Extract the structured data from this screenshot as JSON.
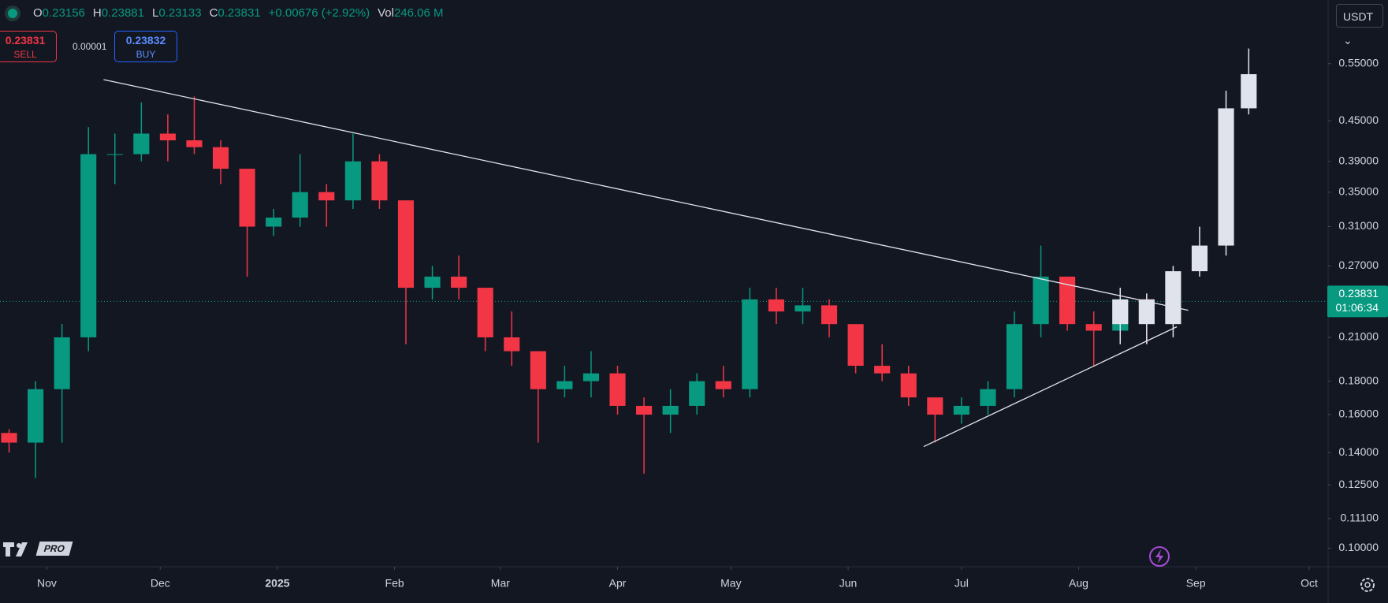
{
  "header": {
    "items": [
      {
        "label": "O",
        "value": "0.23156"
      },
      {
        "label": "H",
        "value": "0.23881"
      },
      {
        "label": "L",
        "value": "0.23133"
      },
      {
        "label": "C",
        "value": "0.23831"
      }
    ],
    "change": "+0.00676 (+2.92%)",
    "volume_label": "Vol",
    "volume": "246.06 M"
  },
  "trade": {
    "sell_price": "0.23831",
    "sell_label": "SELL",
    "spread": "0.00001",
    "buy_price": "0.23832",
    "buy_label": "BUY"
  },
  "currency": "USDT",
  "badge": "PRO",
  "chart_data": {
    "type": "candlestick",
    "log_scale": true,
    "grid": false,
    "up_color": "#089981",
    "down_color": "#f23645",
    "projection_color": "#e0e3eb",
    "trendline_color": "#e0e3eb",
    "xlim": [
      -12.4,
      339
    ],
    "xticks": [
      {
        "value": 0,
        "label": "Nov"
      },
      {
        "value": 30,
        "label": "Dec"
      },
      {
        "value": 61,
        "label": "2025"
      },
      {
        "value": 92,
        "label": "Feb"
      },
      {
        "value": 120,
        "label": "Mar"
      },
      {
        "value": 151,
        "label": "Apr"
      },
      {
        "value": 181,
        "label": "May"
      },
      {
        "value": 212,
        "label": "Jun"
      },
      {
        "value": 242,
        "label": "Jul"
      },
      {
        "value": 273,
        "label": "Aug"
      },
      {
        "value": 304,
        "label": "Sep"
      },
      {
        "value": 334,
        "label": "Oct"
      }
    ],
    "ylim": [
      0.0937,
      0.688
    ],
    "yticks": [
      {
        "value": 0.55,
        "label": "0.55000"
      },
      {
        "value": 0.45,
        "label": "0.45000"
      },
      {
        "value": 0.39,
        "label": "0.39000"
      },
      {
        "value": 0.35,
        "label": "0.35000"
      },
      {
        "value": 0.31,
        "label": "0.31000"
      },
      {
        "value": 0.27,
        "label": "0.27000"
      },
      {
        "value": 0.21,
        "label": "0.21000"
      },
      {
        "value": 0.18,
        "label": "0.18000"
      },
      {
        "value": 0.16,
        "label": "0.16000"
      },
      {
        "value": 0.14,
        "label": "0.14000"
      },
      {
        "value": 0.125,
        "label": "0.12500"
      },
      {
        "value": 0.111,
        "label": "0.11100"
      },
      {
        "value": 0.1,
        "label": "0.10000"
      }
    ],
    "candles": {
      "x": [
        -10,
        -3,
        4,
        11,
        18,
        25,
        32,
        39,
        46,
        53,
        60,
        67,
        74,
        81,
        88,
        95,
        102,
        109,
        116,
        123,
        130,
        137,
        144,
        151,
        158,
        165,
        172,
        179,
        186,
        193,
        200,
        207,
        214,
        221,
        228,
        235,
        242,
        249,
        256,
        263,
        270,
        277,
        284,
        291
      ],
      "open": [
        0.15,
        0.145,
        0.175,
        0.21,
        0.4,
        0.4,
        0.43,
        0.42,
        0.41,
        0.38,
        0.31,
        0.32,
        0.35,
        0.34,
        0.39,
        0.34,
        0.25,
        0.26,
        0.25,
        0.21,
        0.2,
        0.175,
        0.18,
        0.185,
        0.165,
        0.16,
        0.165,
        0.18,
        0.175,
        0.24,
        0.23,
        0.235,
        0.22,
        0.19,
        0.185,
        0.17,
        0.16,
        0.165,
        0.175,
        0.22,
        0.26,
        0.22,
        0.215,
        0.24
      ],
      "high": [
        0.152,
        0.18,
        0.22,
        0.44,
        0.43,
        0.48,
        0.46,
        0.49,
        0.42,
        0.38,
        0.33,
        0.4,
        0.36,
        0.43,
        0.4,
        0.34,
        0.27,
        0.28,
        0.25,
        0.23,
        0.2,
        0.19,
        0.2,
        0.19,
        0.17,
        0.175,
        0.185,
        0.19,
        0.25,
        0.25,
        0.25,
        0.24,
        0.22,
        0.205,
        0.19,
        0.17,
        0.17,
        0.18,
        0.23,
        0.29,
        0.26,
        0.23,
        0.25,
        0.245
      ],
      "low": [
        0.14,
        0.128,
        0.145,
        0.2,
        0.36,
        0.39,
        0.39,
        0.4,
        0.36,
        0.26,
        0.3,
        0.31,
        0.31,
        0.33,
        0.33,
        0.205,
        0.24,
        0.24,
        0.2,
        0.19,
        0.145,
        0.17,
        0.17,
        0.16,
        0.13,
        0.15,
        0.16,
        0.17,
        0.17,
        0.22,
        0.22,
        0.21,
        0.185,
        0.18,
        0.165,
        0.145,
        0.155,
        0.16,
        0.17,
        0.21,
        0.215,
        0.19,
        0.21,
        0.205
      ],
      "close": [
        0.145,
        0.175,
        0.21,
        0.4,
        0.4,
        0.43,
        0.42,
        0.41,
        0.38,
        0.31,
        0.32,
        0.35,
        0.34,
        0.39,
        0.34,
        0.25,
        0.26,
        0.25,
        0.21,
        0.2,
        0.175,
        0.18,
        0.185,
        0.165,
        0.16,
        0.165,
        0.18,
        0.175,
        0.24,
        0.23,
        0.235,
        0.22,
        0.19,
        0.185,
        0.17,
        0.16,
        0.165,
        0.175,
        0.22,
        0.26,
        0.22,
        0.215,
        0.24,
        0.238
      ]
    },
    "projection": {
      "x": [
        284,
        291,
        298,
        305,
        312,
        318
      ],
      "open": [
        0.22,
        0.24,
        0.22,
        0.265,
        0.29,
        0.47
      ],
      "high": [
        0.25,
        0.245,
        0.27,
        0.31,
        0.5,
        0.58
      ],
      "low": [
        0.205,
        0.205,
        0.21,
        0.26,
        0.28,
        0.46
      ],
      "close": [
        0.24,
        0.22,
        0.265,
        0.29,
        0.47,
        0.53
      ]
    },
    "trendlines": [
      {
        "x": [
          15,
          302
        ],
        "y": [
          0.52,
          0.231
        ]
      },
      {
        "x": [
          232,
          299
        ],
        "y": [
          0.143,
          0.218
        ]
      }
    ],
    "last_price": {
      "value": 0.23831,
      "countdown": "01:06:34"
    }
  }
}
